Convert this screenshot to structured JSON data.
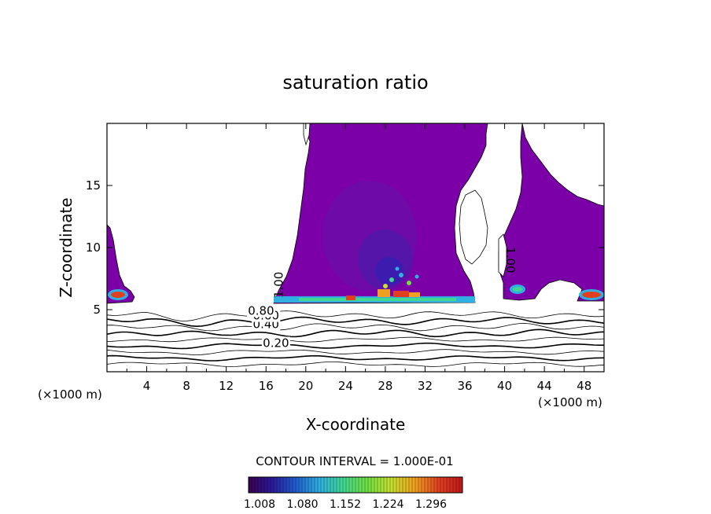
{
  "chart_data": {
    "type": "contour",
    "title": "saturation ratio",
    "xlabel": "X-coordinate",
    "ylabel": "Z-coordinate",
    "x_unit_left": "(×1000 m)",
    "x_unit_right": "(×1000 m)",
    "xlim": [
      0,
      50
    ],
    "ylim": [
      0,
      20
    ],
    "x_ticks": [
      4,
      8,
      12,
      16,
      20,
      24,
      28,
      32,
      36,
      40,
      44,
      48
    ],
    "y_ticks": [
      5,
      10,
      15
    ],
    "contour_interval_text": "CONTOUR INTERVAL = 1.000E-01",
    "colorbar": {
      "tick_labels": [
        "1.008",
        "1.080",
        "1.152",
        "1.224",
        "1.296"
      ],
      "colors": [
        "#3a0050",
        "#2a1a9a",
        "#1f5fd0",
        "#2fb0e0",
        "#40d890",
        "#70e040",
        "#c8e030",
        "#f0a020",
        "#e04020",
        "#c01818"
      ]
    },
    "contour_labels": [
      {
        "text": "0.20",
        "x": 17.0,
        "y": 2.0
      },
      {
        "text": "0.40",
        "x": 16.0,
        "y": 3.5
      },
      {
        "text": "0.60",
        "x": 16.0,
        "y": 4.2
      },
      {
        "text": "0.80",
        "x": 15.5,
        "y": 4.6
      },
      {
        "text": "1.00",
        "x": 17.7,
        "y": 7.0
      },
      {
        "text": "1.00",
        "x": 40.2,
        "y": 9.0
      }
    ],
    "contour_levels_below_saturation": [
      0.1,
      0.2,
      0.3,
      0.4,
      0.5,
      0.6,
      0.7,
      0.8,
      0.9
    ],
    "saturated_region_color": "#7b00a8",
    "description_regions": [
      {
        "name": "left-cap",
        "x": [
          0,
          2.8
        ],
        "z": [
          5.8,
          11.8
        ]
      },
      {
        "name": "main-plume",
        "x": [
          17,
          36
        ],
        "z": [
          5.4,
          20
        ]
      },
      {
        "name": "right-plume",
        "x": [
          39.6,
          50
        ],
        "z": [
          5.8,
          20
        ]
      }
    ]
  }
}
